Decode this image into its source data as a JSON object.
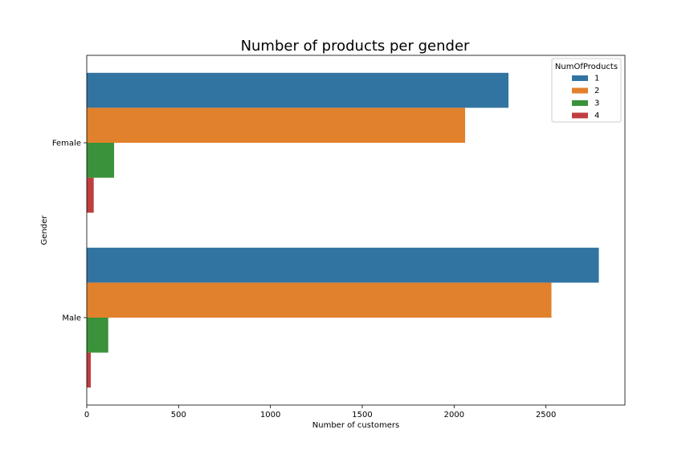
{
  "chart_data": {
    "type": "bar",
    "orientation": "horizontal",
    "title": "Number of products per gender",
    "xlabel": "Number of customers",
    "ylabel": "Gender",
    "categories": [
      "Female",
      "Male"
    ],
    "xlim": [
      0,
      2930
    ],
    "xticks": [
      0,
      500,
      1000,
      1500,
      2000,
      2500
    ],
    "xtick_labels": [
      "0",
      "500",
      "1000",
      "1500",
      "2000",
      "2500"
    ],
    "grid": false,
    "legend": {
      "title": "NumOfProducts",
      "placement": "top-right"
    },
    "series": [
      {
        "name": "1",
        "color": "#3274a1",
        "values": [
          2296,
          2788
        ]
      },
      {
        "name": "2",
        "color": "#e1812c",
        "values": [
          2060,
          2530
        ]
      },
      {
        "name": "3",
        "color": "#3a923a",
        "values": [
          149,
          117
        ]
      },
      {
        "name": "4",
        "color": "#c03d3e",
        "values": [
          38,
          22
        ]
      }
    ]
  }
}
